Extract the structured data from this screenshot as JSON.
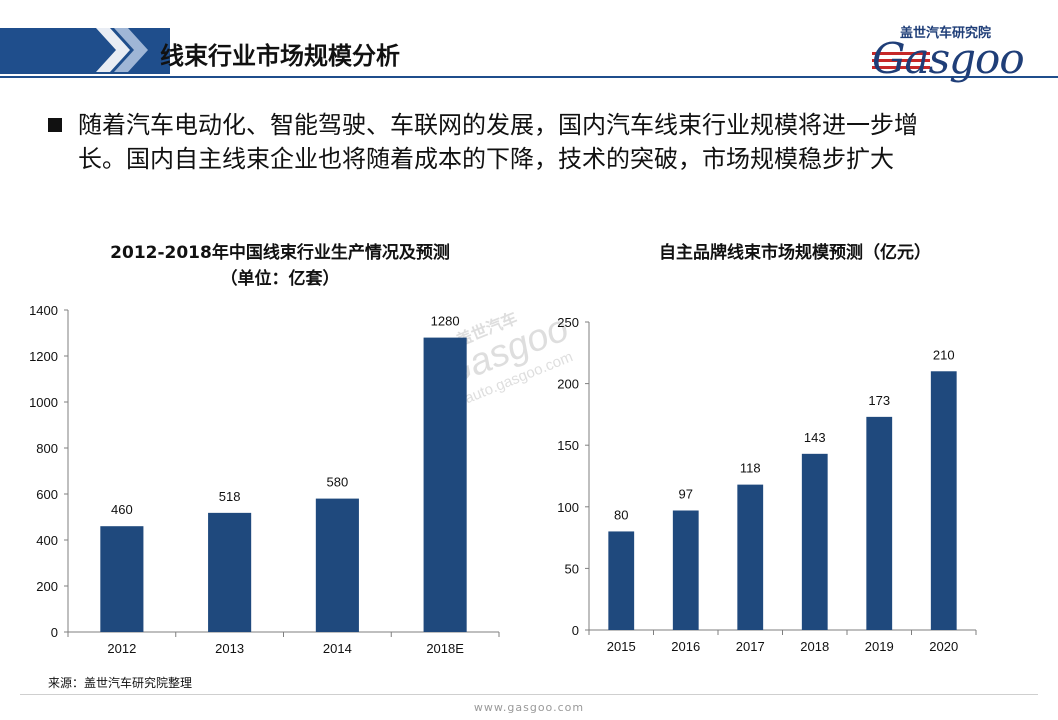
{
  "header": {
    "title": "线束行业市场规模分析",
    "logo_cn": "盖世汽车研究院",
    "logo_en": "Gasgoo"
  },
  "bullet": {
    "line1": "随着汽车电动化、智能驾驶、车联网的发展，国内汽车线束行业规模将进一步增",
    "line2": "长。国内自主线束企业也将随着成本的下降，技术的突破，市场规模稳步扩大"
  },
  "watermark": {
    "cn": "盖世汽车",
    "en": "Gasgoo",
    "url": "auto.gasgoo.com"
  },
  "chart_data": [
    {
      "type": "bar",
      "title_line1": "2012-2018年中国线束行业生产情况及预测",
      "title_line2": "（单位：亿套）",
      "categories": [
        "2012",
        "2013",
        "2014",
        "2018E"
      ],
      "values": [
        460,
        518,
        580,
        1280
      ],
      "data_labels": [
        "460",
        "518",
        "580",
        "1280"
      ],
      "ylim": [
        0,
        1400
      ],
      "yticks": [
        "0",
        "200",
        "400",
        "600",
        "800",
        "1000",
        "1200",
        "1400"
      ],
      "bar_color": "#1f497d",
      "grid": false
    },
    {
      "type": "bar",
      "title_line1": "自主品牌线束市场规模预测（亿元）",
      "categories": [
        "2015",
        "2016",
        "2017",
        "2018",
        "2019",
        "2020"
      ],
      "values": [
        80,
        97,
        118,
        143,
        173,
        210
      ],
      "data_labels": [
        "80",
        "97",
        "118",
        "143",
        "173",
        "210"
      ],
      "ylim": [
        0,
        250
      ],
      "yticks": [
        "0",
        "50",
        "100",
        "150",
        "200",
        "250"
      ],
      "bar_color": "#1f497d",
      "grid": false
    }
  ],
  "source": "来源：盖世汽车研究院整理",
  "footer": {
    "url": "www.gasgoo.com"
  }
}
